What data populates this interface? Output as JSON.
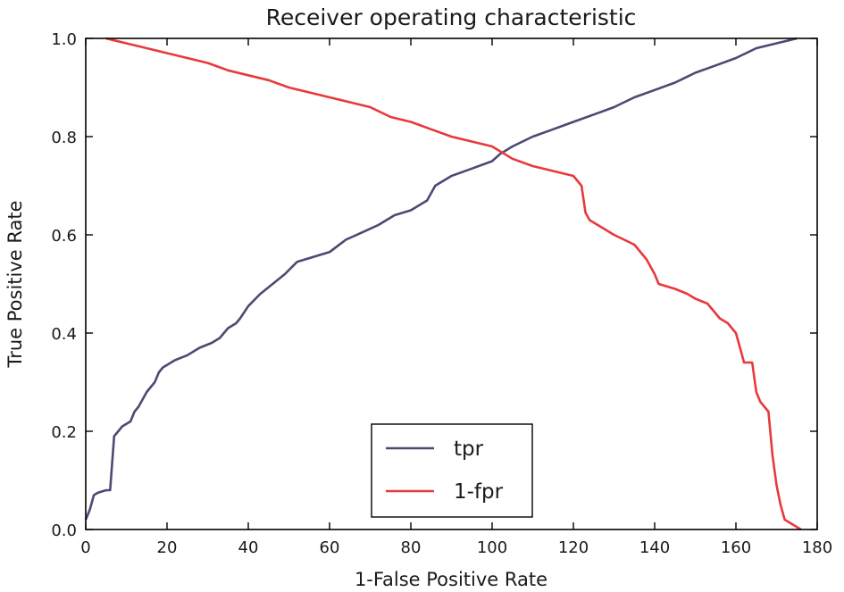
{
  "chart_data": {
    "type": "line",
    "title": "Receiver operating characteristic",
    "xlabel": "1-False Positive Rate",
    "ylabel": "True Positive Rate",
    "xlim": [
      0,
      180
    ],
    "ylim": [
      0.0,
      1.0
    ],
    "xticks": [
      "0",
      "20",
      "40",
      "60",
      "80",
      "100",
      "120",
      "140",
      "160",
      "180"
    ],
    "yticks": [
      "0.0",
      "0.2",
      "0.4",
      "0.6",
      "0.8",
      "1.0"
    ],
    "grid": false,
    "legend_position": "lower-center",
    "series": [
      {
        "name": "tpr",
        "color": "#4b4a73",
        "x": [
          0,
          1,
          2,
          3,
          5,
          6,
          7,
          8,
          9,
          11,
          12,
          13,
          15,
          17,
          18,
          19,
          20,
          22,
          25,
          28,
          31,
          33,
          35,
          37,
          38,
          40,
          43,
          46,
          49,
          52,
          56,
          60,
          64,
          68,
          72,
          76,
          80,
          84,
          86,
          90,
          95,
          100,
          102,
          105,
          110,
          115,
          120,
          125,
          130,
          135,
          140,
          145,
          150,
          155,
          160,
          165,
          170,
          175
        ],
        "y": [
          0.02,
          0.04,
          0.07,
          0.075,
          0.08,
          0.08,
          0.19,
          0.2,
          0.21,
          0.22,
          0.24,
          0.25,
          0.28,
          0.3,
          0.32,
          0.33,
          0.335,
          0.345,
          0.355,
          0.37,
          0.38,
          0.39,
          0.41,
          0.42,
          0.43,
          0.455,
          0.48,
          0.5,
          0.52,
          0.545,
          0.555,
          0.565,
          0.59,
          0.605,
          0.62,
          0.64,
          0.65,
          0.67,
          0.7,
          0.72,
          0.735,
          0.75,
          0.765,
          0.78,
          0.8,
          0.815,
          0.83,
          0.845,
          0.86,
          0.88,
          0.895,
          0.91,
          0.93,
          0.945,
          0.96,
          0.98,
          0.99,
          1.0
        ]
      },
      {
        "name": "1-fpr",
        "color": "#e8393c",
        "x": [
          5,
          10,
          15,
          20,
          25,
          30,
          35,
          40,
          45,
          50,
          55,
          60,
          65,
          70,
          75,
          80,
          85,
          90,
          95,
          100,
          105,
          110,
          115,
          120,
          122,
          123,
          124,
          126,
          130,
          135,
          138,
          140,
          141,
          145,
          148,
          150,
          153,
          155,
          156,
          158,
          160,
          161,
          162,
          163,
          164,
          165,
          166,
          167,
          168,
          169,
          170,
          171,
          172,
          174,
          176
        ],
        "y": [
          1.0,
          0.99,
          0.98,
          0.97,
          0.96,
          0.95,
          0.935,
          0.925,
          0.915,
          0.9,
          0.89,
          0.88,
          0.87,
          0.86,
          0.84,
          0.83,
          0.815,
          0.8,
          0.79,
          0.78,
          0.755,
          0.74,
          0.73,
          0.72,
          0.7,
          0.645,
          0.63,
          0.62,
          0.6,
          0.58,
          0.55,
          0.52,
          0.5,
          0.49,
          0.48,
          0.47,
          0.46,
          0.44,
          0.43,
          0.42,
          0.4,
          0.37,
          0.34,
          0.34,
          0.34,
          0.28,
          0.26,
          0.25,
          0.24,
          0.15,
          0.09,
          0.05,
          0.02,
          0.01,
          0.0
        ]
      }
    ]
  }
}
